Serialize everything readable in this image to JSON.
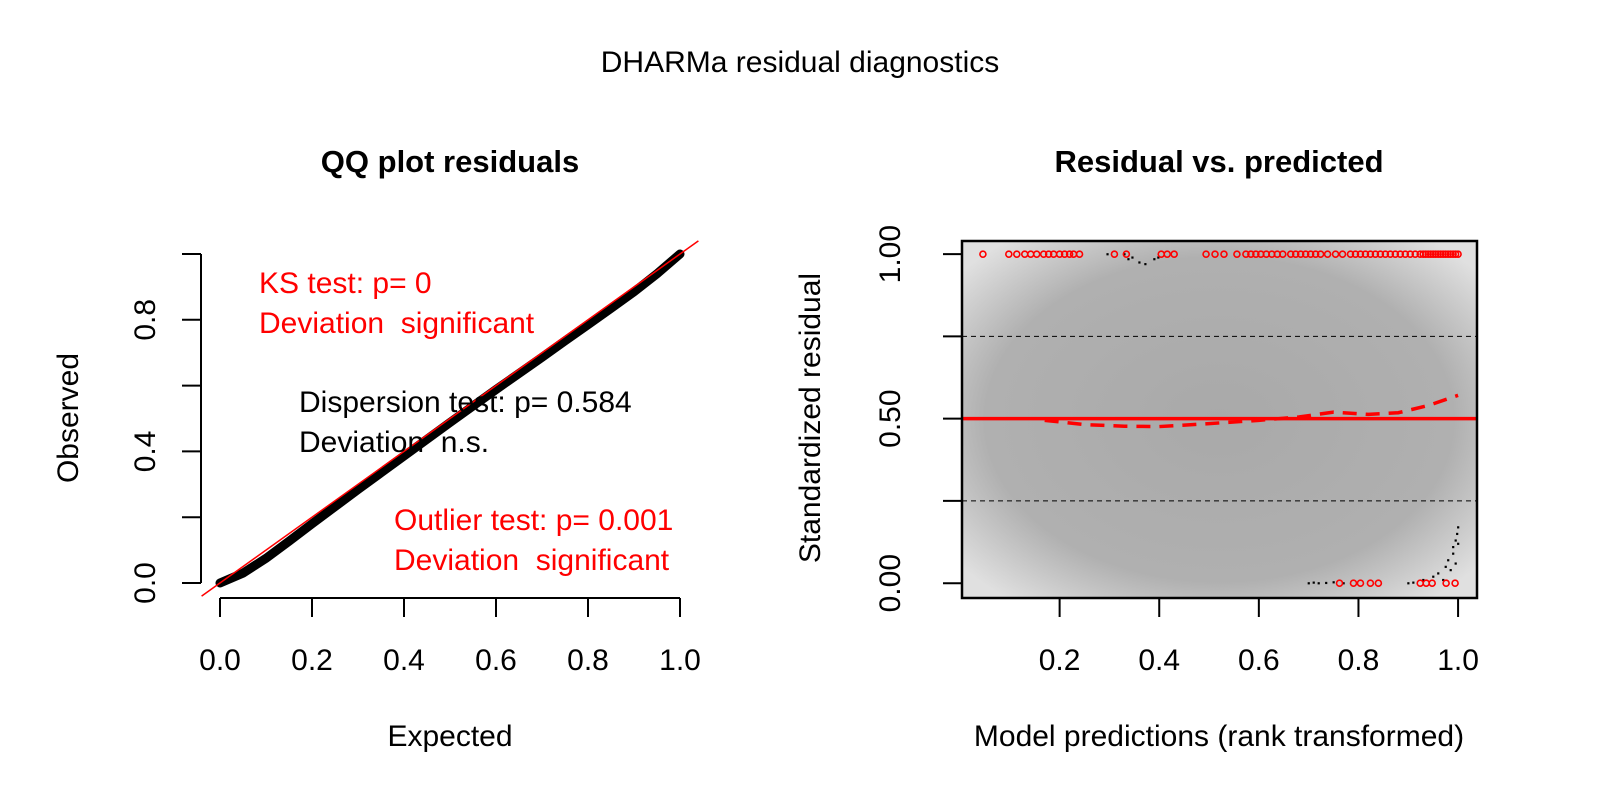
{
  "colors": {
    "red": "#ff0000",
    "black": "#000000",
    "panel_center": "#a8a8a8",
    "panel_edge": "#dcdcdc"
  },
  "title": "DHARMa residual diagnostics",
  "chart_data": [
    {
      "type": "line",
      "title": "QQ plot residuals",
      "xlabel": "Expected",
      "ylabel": "Observed",
      "xlim": [
        -0.04,
        1.04
      ],
      "ylim": [
        -0.04,
        1.04
      ],
      "x_ticks": [
        "0.0",
        "0.2",
        "0.4",
        "0.6",
        "0.8",
        "1.0"
      ],
      "x_tick_values": [
        0,
        0.2,
        0.4,
        0.6,
        0.8,
        1.0
      ],
      "y_ticks": [
        "0.0",
        "",
        "0.4",
        "",
        "0.8",
        ""
      ],
      "y_tick_values": [
        0,
        0.2,
        0.4,
        0.6,
        0.8,
        1.0
      ],
      "series": [
        {
          "kind": "qq-points",
          "x": [
            0,
            0.05,
            0.1,
            0.15,
            0.2,
            0.25,
            0.3,
            0.35,
            0.4,
            0.45,
            0.5,
            0.55,
            0.6,
            0.65,
            0.7,
            0.75,
            0.8,
            0.85,
            0.9,
            0.95,
            1.0
          ],
          "y": [
            0,
            0.03,
            0.075,
            0.127,
            0.18,
            0.232,
            0.284,
            0.335,
            0.386,
            0.437,
            0.488,
            0.538,
            0.588,
            0.637,
            0.686,
            0.736,
            0.785,
            0.835,
            0.885,
            0.94,
            1.0
          ]
        },
        {
          "kind": "reference-line",
          "x": [
            -0.04,
            1.04
          ],
          "y": [
            -0.04,
            1.04
          ]
        }
      ],
      "annotations": [
        {
          "lines": [
            "KS test: p= 0",
            "Deviation  significant"
          ],
          "color": "#ff0000"
        },
        {
          "lines": [
            "Dispersion test: p= 0.584",
            "Deviation  n.s."
          ],
          "color": "#000000"
        },
        {
          "lines": [
            "Outlier test: p= 0.001",
            "Deviation  significant"
          ],
          "color": "#ff0000"
        }
      ]
    },
    {
      "type": "scatter",
      "title": "Residual vs. predicted",
      "xlabel": "Model predictions (rank transformed)",
      "ylabel": "Standardized residual",
      "xlim": [
        0.004,
        1.038
      ],
      "ylim": [
        -0.045,
        1.04
      ],
      "x_ticks": [
        "0.2",
        "0.4",
        "0.6",
        "0.8",
        "1.0"
      ],
      "x_tick_values": [
        0.2,
        0.4,
        0.6,
        0.8,
        1.0
      ],
      "y_ticks": [
        "0.00",
        "",
        "0.50",
        "",
        "1.00"
      ],
      "y_tick_values": [
        0,
        0.25,
        0.5,
        0.75,
        1.0
      ],
      "hlines_dashed": [
        0.25,
        0.75
      ],
      "hline_solid": 0.5,
      "outliers_top_x": [
        0.046,
        0.098,
        0.114,
        0.13,
        0.142,
        0.154,
        0.168,
        0.178,
        0.188,
        0.2,
        0.21,
        0.22,
        0.228,
        0.24,
        0.31,
        0.334,
        0.404,
        0.416,
        0.43,
        0.494,
        0.512,
        0.53,
        0.556,
        0.574,
        0.584,
        0.594,
        0.604,
        0.615,
        0.626,
        0.637,
        0.648,
        0.664,
        0.674,
        0.684,
        0.694,
        0.704,
        0.714,
        0.724,
        0.738,
        0.754,
        0.768,
        0.784,
        0.794,
        0.804,
        0.814,
        0.824,
        0.834,
        0.844,
        0.854,
        0.864,
        0.874,
        0.884,
        0.894,
        0.904,
        0.914,
        0.924,
        0.93,
        0.935,
        0.94,
        0.945,
        0.95,
        0.955,
        0.96,
        0.965,
        0.97,
        0.975,
        0.98,
        0.985,
        0.99,
        0.995,
        1.0
      ],
      "outliers_bottom_x": [
        0.762,
        0.79,
        0.804,
        0.824,
        0.84,
        0.924,
        0.936,
        0.948,
        0.976,
        0.994
      ],
      "points": {
        "x": [
          0.296,
          0.33,
          0.338,
          0.346,
          0.36,
          0.372,
          0.39,
          0.398,
          0.7,
          0.71,
          0.72,
          0.735,
          0.75,
          0.77,
          0.9,
          0.91,
          0.93,
          0.95,
          0.96,
          0.97,
          0.975,
          0.98,
          0.985,
          0.99,
          0.99,
          0.995,
          0.995,
          0.998,
          1.0,
          1.0
        ],
        "y": [
          1.0,
          1.0,
          0.985,
          0.99,
          0.975,
          0.97,
          0.985,
          0.99,
          0.0,
          0.002,
          0.0,
          0.001,
          0.003,
          0.0,
          0.0,
          0.002,
          0.01,
          0.02,
          0.03,
          0.01,
          0.05,
          0.07,
          0.04,
          0.09,
          0.11,
          0.06,
          0.13,
          0.15,
          0.17,
          0.12
        ]
      },
      "smooth_dashed": {
        "x": [
          0.17,
          0.25,
          0.33,
          0.4,
          0.5,
          0.6,
          0.68,
          0.75,
          0.82,
          0.88,
          0.94,
          1.0
        ],
        "y": [
          0.495,
          0.482,
          0.477,
          0.476,
          0.485,
          0.495,
          0.505,
          0.52,
          0.513,
          0.518,
          0.54,
          0.571
        ]
      }
    }
  ]
}
